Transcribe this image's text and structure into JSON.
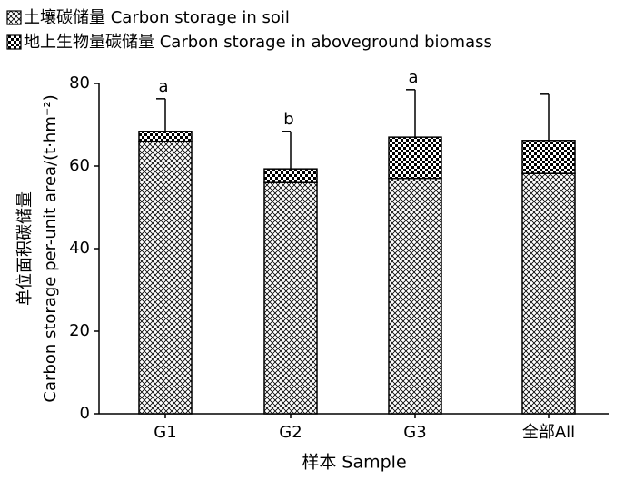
{
  "chart_data": {
    "type": "bar",
    "stacked": true,
    "categories": [
      "G1",
      "G2",
      "G3",
      "全部All"
    ],
    "series": [
      {
        "name": "土壤碳储量 Carbon storage in soil",
        "color": "#000000",
        "pattern": "fine-crosshatch",
        "values": [
          66,
          56,
          57,
          58.2
        ]
      },
      {
        "name": "地上生物量碳储量 Carbon storage in aboveground biomass",
        "color": "#000000",
        "pattern": "checker",
        "values": [
          2.4,
          3.3,
          10,
          8
        ]
      }
    ],
    "errors": [
      7.9,
      9.1,
      11.5,
      11.2
    ],
    "annotations": [
      "a",
      "b",
      "a",
      null
    ],
    "ylabel": [
      "单位面积碳储量",
      "Carbon storage per-unit area/(t·hm⁻²)"
    ],
    "xlabel": "样本 Sample",
    "ylim": [
      0,
      80
    ],
    "yticks": [
      0,
      20,
      40,
      60,
      80
    ],
    "grid": false,
    "legend": "top-left"
  }
}
